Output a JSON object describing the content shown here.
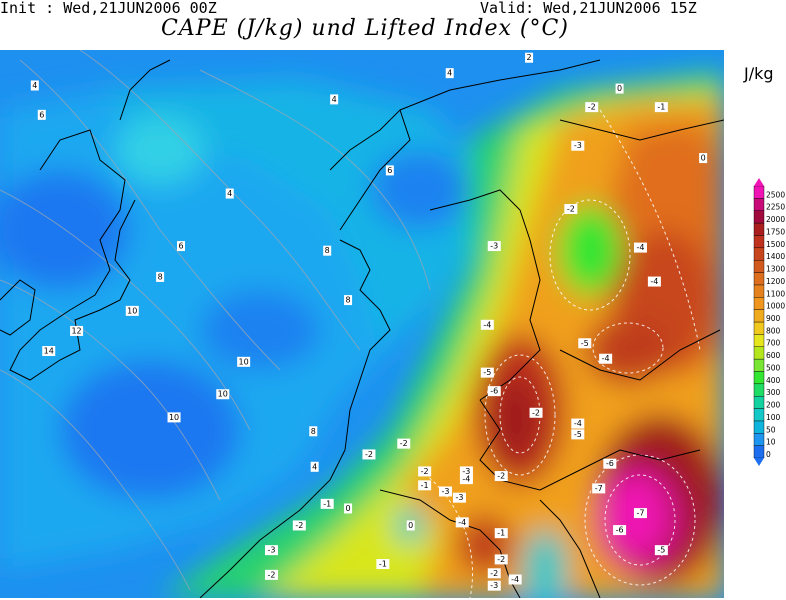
{
  "header": {
    "init_text": "Init : Wed,21JUN2006 00Z",
    "valid_text": "Valid: Wed,21JUN2006 15Z",
    "title": "CAPE (J/kg) und Lifted Index (°C)"
  },
  "legend": {
    "unit": "J/kg",
    "levels": [
      "0",
      "10",
      "50",
      "100",
      "200",
      "300",
      "400",
      "500",
      "600",
      "700",
      "800",
      "900",
      "1000",
      "1100",
      "1200",
      "1300",
      "1400",
      "1500",
      "1750",
      "2000",
      "2250",
      "2500"
    ],
    "colors": [
      "#1E6EF0",
      "#1E96F0",
      "#0FB4DC",
      "#14C8C8",
      "#14D2A0",
      "#1EDC64",
      "#32E632",
      "#78E632",
      "#B4E61E",
      "#E6E61E",
      "#F0C81E",
      "#F0AA1E",
      "#F0961E",
      "#E6821E",
      "#DC6E1E",
      "#D25A1E",
      "#C8461E",
      "#BE321E",
      "#AA1E1E",
      "#A00A3C",
      "#C80A78",
      "#F014B4"
    ]
  },
  "map": {
    "lifted_index_labels": [
      {
        "text": "4",
        "lon": -17.5,
        "lat": 69.2
      },
      {
        "text": "6",
        "lon": -17.0,
        "lat": 67.3
      },
      {
        "text": "4",
        "lon": 4.0,
        "lat": 68.3
      },
      {
        "text": "4",
        "lon": -3.5,
        "lat": 62.2
      },
      {
        "text": "6",
        "lon": -7.0,
        "lat": 58.8
      },
      {
        "text": "8",
        "lon": -8.5,
        "lat": 56.8
      },
      {
        "text": "10",
        "lon": -10.5,
        "lat": 54.6
      },
      {
        "text": "12",
        "lon": -14.5,
        "lat": 53.3
      },
      {
        "text": "14",
        "lon": -16.5,
        "lat": 52.0
      },
      {
        "text": "10",
        "lon": -2.5,
        "lat": 51.3
      },
      {
        "text": "10",
        "lon": -4.0,
        "lat": 49.2
      },
      {
        "text": "10",
        "lon": -7.5,
        "lat": 47.7
      },
      {
        "text": "8",
        "lon": 3.5,
        "lat": 58.5
      },
      {
        "text": "6",
        "lon": 8.0,
        "lat": 63.7
      },
      {
        "text": "8",
        "lon": 5.0,
        "lat": 55.3
      },
      {
        "text": "8",
        "lon": 2.5,
        "lat": 46.8
      },
      {
        "text": "4",
        "lon": 2.6,
        "lat": 44.5
      },
      {
        "text": "4",
        "lon": 12.3,
        "lat": 70.0
      },
      {
        "text": "2",
        "lon": 18.0,
        "lat": 71.0
      },
      {
        "text": "0",
        "lon": 24.5,
        "lat": 69.0
      },
      {
        "text": "-2",
        "lon": 22.5,
        "lat": 67.8
      },
      {
        "text": "-1",
        "lon": 27.5,
        "lat": 67.8
      },
      {
        "text": "-3",
        "lon": 21.5,
        "lat": 65.3
      },
      {
        "text": "0",
        "lon": 30.5,
        "lat": 64.5
      },
      {
        "text": "-2",
        "lon": 21.0,
        "lat": 61.2
      },
      {
        "text": "-3",
        "lon": 15.5,
        "lat": 58.8
      },
      {
        "text": "-4",
        "lon": 26.0,
        "lat": 58.7
      },
      {
        "text": "-4",
        "lon": 27.0,
        "lat": 56.5
      },
      {
        "text": "-4",
        "lon": 15.0,
        "lat": 53.7
      },
      {
        "text": "-5",
        "lon": 22.0,
        "lat": 52.5
      },
      {
        "text": "-4",
        "lon": 23.5,
        "lat": 51.5
      },
      {
        "text": "-5",
        "lon": 15.0,
        "lat": 50.6
      },
      {
        "text": "-6",
        "lon": 15.5,
        "lat": 49.4
      },
      {
        "text": "-2",
        "lon": 18.5,
        "lat": 48.0
      },
      {
        "text": "-4",
        "lon": 21.5,
        "lat": 47.3
      },
      {
        "text": "-5",
        "lon": 21.5,
        "lat": 46.6
      },
      {
        "text": "-2",
        "lon": 9.0,
        "lat": 46.0
      },
      {
        "text": "-2",
        "lon": 6.5,
        "lat": 45.3
      },
      {
        "text": "-2",
        "lon": 10.5,
        "lat": 44.2
      },
      {
        "text": "-3",
        "lon": 13.5,
        "lat": 44.2
      },
      {
        "text": "-4",
        "lon": 13.5,
        "lat": 43.7
      },
      {
        "text": "-2",
        "lon": 16.0,
        "lat": 43.9
      },
      {
        "text": "-6",
        "lon": 23.8,
        "lat": 44.7
      },
      {
        "text": "-7",
        "lon": 23.0,
        "lat": 43.1
      },
      {
        "text": "-1",
        "lon": 10.5,
        "lat": 43.3
      },
      {
        "text": "-3",
        "lon": 12.0,
        "lat": 42.9
      },
      {
        "text": "-3",
        "lon": 13.0,
        "lat": 42.5
      },
      {
        "text": "-1",
        "lon": 3.5,
        "lat": 42.1
      },
      {
        "text": "0",
        "lon": 5.0,
        "lat": 41.8
      },
      {
        "text": "-4",
        "lon": 13.2,
        "lat": 40.9
      },
      {
        "text": "-2",
        "lon": 1.5,
        "lat": 40.7
      },
      {
        "text": "0",
        "lon": 9.5,
        "lat": 40.7
      },
      {
        "text": "-1",
        "lon": 16.0,
        "lat": 40.2
      },
      {
        "text": "-7",
        "lon": 26.0,
        "lat": 41.5
      },
      {
        "text": "-6",
        "lon": 24.5,
        "lat": 40.4
      },
      {
        "text": "-5",
        "lon": 27.5,
        "lat": 39.1
      },
      {
        "text": "-3",
        "lon": -0.5,
        "lat": 39.1
      },
      {
        "text": "-1",
        "lon": 7.5,
        "lat": 38.2
      },
      {
        "text": "-2",
        "lon": 16.0,
        "lat": 38.5
      },
      {
        "text": "-2",
        "lon": 15.5,
        "lat": 37.6
      },
      {
        "text": "-4",
        "lon": 17.0,
        "lat": 37.2
      },
      {
        "text": "-2",
        "lon": -0.5,
        "lat": 37.5
      },
      {
        "text": "-3",
        "lon": 15.5,
        "lat": 36.8
      }
    ]
  }
}
